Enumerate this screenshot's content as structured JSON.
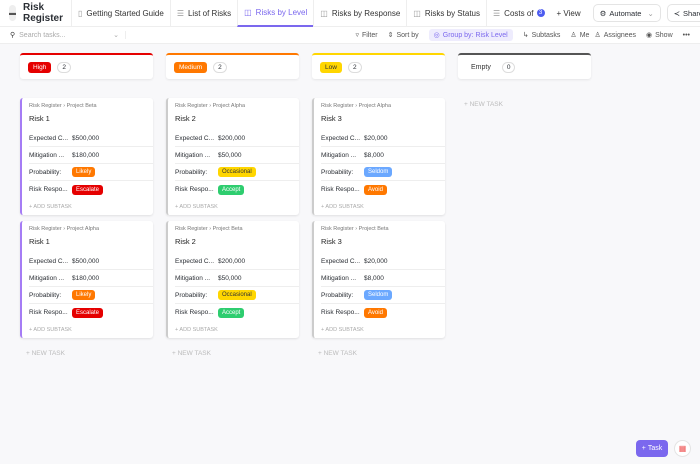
{
  "header": {
    "title": "Risk Register",
    "tabs": [
      {
        "label": "Getting Started Guide",
        "icon": "doc-icon",
        "active": false
      },
      {
        "label": "List of Risks",
        "icon": "list-icon",
        "active": false
      },
      {
        "label": "Risks by Level",
        "icon": "board-icon",
        "active": true
      },
      {
        "label": "Risks by Response",
        "icon": "board-icon",
        "active": false
      },
      {
        "label": "Risks by Status",
        "icon": "board-icon",
        "active": false
      },
      {
        "label": "Costs of",
        "icon": "list-icon",
        "active": false
      }
    ],
    "more_tabs": "3",
    "view": "+ View",
    "automate": "Automate",
    "share": "Share"
  },
  "toolbar": {
    "search_placeholder": "Search tasks...",
    "filter": "Filter",
    "sort": "Sort by",
    "group": "Group by: Risk Level",
    "subtasks": "Subtasks",
    "me": "Me",
    "assignees": "Assignees",
    "show": "Show",
    "more": "•••"
  },
  "columns": [
    {
      "label": "High",
      "count": "2",
      "color": "#e50000"
    },
    {
      "label": "Medium",
      "count": "2",
      "color": "#ff7800"
    },
    {
      "label": "Low",
      "count": "2",
      "color": "#ffd600"
    },
    {
      "label": "Empty",
      "count": "0",
      "color": "#555555"
    }
  ],
  "fields": {
    "expected": "Expected C...",
    "mitigation": "Mitigation ...",
    "probability": "Probability:",
    "response": "Risk Respo..."
  },
  "cards": [
    [
      {
        "list": "Risk Register",
        "project": "Project Beta",
        "title": "Risk 1",
        "expected": "$500,000",
        "mitigation": "$180,000",
        "probability": "Likely",
        "response": "Escalate"
      },
      {
        "list": "Risk Register",
        "project": "Project Alpha",
        "title": "Risk 1",
        "expected": "$500,000",
        "mitigation": "$180,000",
        "probability": "Likely",
        "response": "Escalate"
      }
    ],
    [
      {
        "list": "Risk Register",
        "project": "Project Alpha",
        "title": "Risk 2",
        "expected": "$200,000",
        "mitigation": "$50,000",
        "probability": "Occasional",
        "response": "Accept"
      },
      {
        "list": "Risk Register",
        "project": "Project Beta",
        "title": "Risk 2",
        "expected": "$200,000",
        "mitigation": "$50,000",
        "probability": "Occasional",
        "response": "Accept"
      }
    ],
    [
      {
        "list": "Risk Register",
        "project": "Project Alpha",
        "title": "Risk 3",
        "expected": "$20,000",
        "mitigation": "$8,000",
        "probability": "Seldom",
        "response": "Avoid"
      },
      {
        "list": "Risk Register",
        "project": "Project Beta",
        "title": "Risk 3",
        "expected": "$20,000",
        "mitigation": "$8,000",
        "probability": "Seldom",
        "response": "Avoid"
      }
    ]
  ],
  "tag_colors": {
    "Likely": "#ff7800",
    "Occasional": "#ffd600",
    "Seldom": "#6ba8ff",
    "Escalate": "#e50000",
    "Accept": "#2ecd6f",
    "Avoid": "#ff7800"
  },
  "add_subtask": "+ ADD SUBTASK",
  "new_task": "+ NEW TASK",
  "task_button": "Task"
}
